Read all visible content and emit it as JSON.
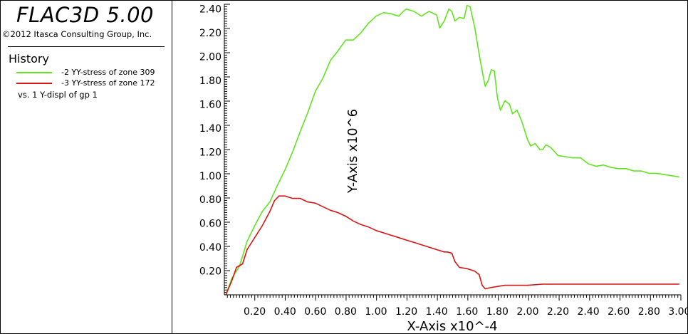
{
  "app": {
    "title": "FLAC3D 5.00",
    "copyright": "©2012 Itasca Consulting Group, Inc."
  },
  "history_panel": {
    "heading": "History",
    "entries": [
      {
        "label": "-2 YY-stress of zone 309",
        "color": "#5fe51e"
      },
      {
        "label": "-3 YY-stress of zone 172",
        "color": "#d91414"
      }
    ],
    "vs_label": "vs. 1 Y-displ of gp 1"
  },
  "chart_data": {
    "type": "line",
    "xlabel": "X-Axis x10^-4",
    "ylabel": "Y-Axis x10^6",
    "xlim": [
      0.0,
      3.01
    ],
    "ylim": [
      0.0,
      2.44
    ],
    "x_ticks": [
      "0.20",
      "0.40",
      "0.60",
      "0.80",
      "1.00",
      "1.20",
      "1.40",
      "1.60",
      "1.80",
      "2.00",
      "2.20",
      "2.40",
      "2.60",
      "2.80",
      "3.00"
    ],
    "y_ticks": [
      "0.20",
      "0.40",
      "0.60",
      "0.80",
      "1.00",
      "1.20",
      "1.40",
      "1.60",
      "1.80",
      "2.00",
      "2.20",
      "2.40"
    ],
    "grid": false,
    "series": [
      {
        "name": "-2 YY-stress of zone 309",
        "color": "#5fe51e",
        "points": [
          [
            0.01,
            0.0
          ],
          [
            0.05,
            0.14
          ],
          [
            0.1,
            0.24
          ],
          [
            0.15,
            0.45
          ],
          [
            0.2,
            0.58
          ],
          [
            0.25,
            0.7
          ],
          [
            0.3,
            0.78
          ],
          [
            0.35,
            0.92
          ],
          [
            0.4,
            1.05
          ],
          [
            0.45,
            1.2
          ],
          [
            0.5,
            1.37
          ],
          [
            0.55,
            1.53
          ],
          [
            0.6,
            1.71
          ],
          [
            0.65,
            1.82
          ],
          [
            0.7,
            1.97
          ],
          [
            0.75,
            2.05
          ],
          [
            0.8,
            2.14
          ],
          [
            0.85,
            2.14
          ],
          [
            0.9,
            2.2
          ],
          [
            0.95,
            2.28
          ],
          [
            1.0,
            2.34
          ],
          [
            1.05,
            2.37
          ],
          [
            1.1,
            2.36
          ],
          [
            1.15,
            2.34
          ],
          [
            1.18,
            2.38
          ],
          [
            1.2,
            2.4
          ],
          [
            1.25,
            2.38
          ],
          [
            1.3,
            2.34
          ],
          [
            1.35,
            2.38
          ],
          [
            1.4,
            2.35
          ],
          [
            1.42,
            2.24
          ],
          [
            1.45,
            2.3
          ],
          [
            1.48,
            2.4
          ],
          [
            1.5,
            2.38
          ],
          [
            1.52,
            2.3
          ],
          [
            1.55,
            2.33
          ],
          [
            1.58,
            2.32
          ],
          [
            1.6,
            2.43
          ],
          [
            1.62,
            2.42
          ],
          [
            1.65,
            2.25
          ],
          [
            1.68,
            2.02
          ],
          [
            1.7,
            1.88
          ],
          [
            1.72,
            1.75
          ],
          [
            1.74,
            1.8
          ],
          [
            1.76,
            1.89
          ],
          [
            1.78,
            1.88
          ],
          [
            1.8,
            1.66
          ],
          [
            1.82,
            1.55
          ],
          [
            1.85,
            1.63
          ],
          [
            1.88,
            1.6
          ],
          [
            1.9,
            1.52
          ],
          [
            1.93,
            1.55
          ],
          [
            1.96,
            1.46
          ],
          [
            2.0,
            1.3
          ],
          [
            2.02,
            1.25
          ],
          [
            2.05,
            1.27
          ],
          [
            2.08,
            1.22
          ],
          [
            2.1,
            1.22
          ],
          [
            2.12,
            1.26
          ],
          [
            2.15,
            1.24
          ],
          [
            2.2,
            1.17
          ],
          [
            2.25,
            1.16
          ],
          [
            2.3,
            1.15
          ],
          [
            2.35,
            1.15
          ],
          [
            2.4,
            1.1
          ],
          [
            2.45,
            1.08
          ],
          [
            2.5,
            1.09
          ],
          [
            2.55,
            1.07
          ],
          [
            2.6,
            1.06
          ],
          [
            2.65,
            1.06
          ],
          [
            2.7,
            1.04
          ],
          [
            2.75,
            1.04
          ],
          [
            2.8,
            1.02
          ],
          [
            2.85,
            1.02
          ],
          [
            2.9,
            1.01
          ],
          [
            2.95,
            1.0
          ],
          [
            3.0,
            0.99
          ]
        ]
      },
      {
        "name": "-3 YY-stress of zone 172",
        "color": "#d91414",
        "points": [
          [
            0.01,
            0.0
          ],
          [
            0.05,
            0.12
          ],
          [
            0.08,
            0.23
          ],
          [
            0.12,
            0.26
          ],
          [
            0.15,
            0.38
          ],
          [
            0.2,
            0.48
          ],
          [
            0.25,
            0.58
          ],
          [
            0.3,
            0.7
          ],
          [
            0.33,
            0.79
          ],
          [
            0.36,
            0.83
          ],
          [
            0.4,
            0.83
          ],
          [
            0.45,
            0.81
          ],
          [
            0.5,
            0.81
          ],
          [
            0.55,
            0.78
          ],
          [
            0.6,
            0.77
          ],
          [
            0.65,
            0.74
          ],
          [
            0.7,
            0.71
          ],
          [
            0.75,
            0.69
          ],
          [
            0.8,
            0.66
          ],
          [
            0.85,
            0.62
          ],
          [
            0.9,
            0.59
          ],
          [
            0.95,
            0.57
          ],
          [
            1.0,
            0.54
          ],
          [
            1.05,
            0.52
          ],
          [
            1.1,
            0.5
          ],
          [
            1.15,
            0.48
          ],
          [
            1.2,
            0.46
          ],
          [
            1.25,
            0.44
          ],
          [
            1.3,
            0.42
          ],
          [
            1.35,
            0.4
          ],
          [
            1.4,
            0.38
          ],
          [
            1.45,
            0.36
          ],
          [
            1.47,
            0.36
          ],
          [
            1.5,
            0.35
          ],
          [
            1.52,
            0.28
          ],
          [
            1.55,
            0.23
          ],
          [
            1.6,
            0.22
          ],
          [
            1.65,
            0.2
          ],
          [
            1.68,
            0.17
          ],
          [
            1.7,
            0.08
          ],
          [
            1.72,
            0.05
          ],
          [
            1.75,
            0.06
          ],
          [
            1.8,
            0.07
          ],
          [
            1.85,
            0.08
          ],
          [
            1.9,
            0.08
          ],
          [
            1.95,
            0.08
          ],
          [
            2.0,
            0.08
          ],
          [
            2.1,
            0.09
          ],
          [
            2.2,
            0.09
          ],
          [
            2.3,
            0.09
          ],
          [
            2.4,
            0.09
          ],
          [
            2.5,
            0.09
          ],
          [
            2.6,
            0.09
          ],
          [
            2.7,
            0.09
          ],
          [
            2.8,
            0.09
          ],
          [
            2.9,
            0.09
          ],
          [
            3.0,
            0.09
          ]
        ]
      }
    ]
  }
}
